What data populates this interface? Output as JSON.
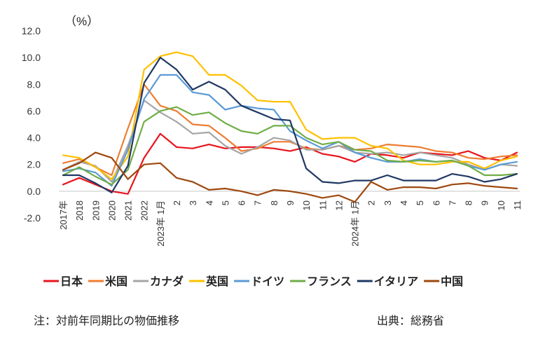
{
  "chart_data": {
    "type": "line",
    "title": "",
    "unit_label": "（%）",
    "xlabel": "",
    "ylabel": "",
    "ylim": [
      -2,
      12
    ],
    "yticks": [
      "12.0",
      "10.0",
      "8.0",
      "6.0",
      "4.0",
      "2.0",
      "0.0",
      "-2.0"
    ],
    "ytick_values": [
      12,
      10,
      8,
      6,
      4,
      2,
      0,
      -2
    ],
    "grid": false,
    "legend_position": "bottom",
    "categories": [
      "2017年",
      "2018",
      "2019",
      "2020",
      "2021",
      "2022",
      "2023年 1月",
      "2",
      "3",
      "4",
      "5",
      "6",
      "7",
      "8",
      "9",
      "10",
      "11",
      "12",
      "2024年 1月",
      "2",
      "3",
      "4",
      "5",
      "6",
      "7",
      "8",
      "9",
      "10",
      "11"
    ],
    "series": [
      {
        "name": "日本",
        "color": "#e8141c",
        "values": [
          0.5,
          1.0,
          0.5,
          0.0,
          -0.2,
          2.5,
          4.3,
          3.3,
          3.2,
          3.5,
          3.2,
          3.3,
          3.3,
          3.2,
          3.0,
          3.3,
          2.8,
          2.6,
          2.2,
          2.8,
          2.7,
          2.5,
          2.9,
          2.8,
          2.7,
          3.0,
          2.5,
          2.3,
          2.9
        ]
      },
      {
        "name": "米国",
        "color": "#ed7d31",
        "values": [
          2.1,
          2.4,
          1.8,
          1.2,
          4.7,
          8.0,
          6.4,
          6.0,
          5.0,
          4.9,
          4.0,
          3.0,
          3.2,
          3.7,
          3.7,
          3.2,
          3.1,
          3.4,
          3.1,
          3.2,
          3.5,
          3.4,
          3.3,
          3.0,
          2.9,
          2.5,
          2.4,
          2.6,
          2.7
        ]
      },
      {
        "name": "カナダ",
        "color": "#a5a5a5",
        "values": [
          1.6,
          2.2,
          1.9,
          0.7,
          3.4,
          6.8,
          5.9,
          5.2,
          4.3,
          4.4,
          3.4,
          2.8,
          3.3,
          4.0,
          3.8,
          3.1,
          3.1,
          3.4,
          2.9,
          2.8,
          2.9,
          2.7,
          2.9,
          2.7,
          2.5,
          2.0,
          1.6,
          2.0,
          1.9
        ]
      },
      {
        "name": "英国",
        "color": "#ffc000",
        "values": [
          2.7,
          2.5,
          1.8,
          0.9,
          2.6,
          9.1,
          10.1,
          10.4,
          10.1,
          8.7,
          8.7,
          7.9,
          6.8,
          6.7,
          6.7,
          4.6,
          3.9,
          4.0,
          4.0,
          3.4,
          3.2,
          2.3,
          2.0,
          2.0,
          2.2,
          2.2,
          1.7,
          2.3,
          2.6
        ]
      },
      {
        "name": "ドイツ",
        "color": "#5b9bd5",
        "values": [
          1.5,
          1.7,
          1.4,
          0.4,
          3.1,
          6.9,
          8.7,
          8.7,
          7.4,
          7.2,
          6.1,
          6.4,
          6.2,
          6.1,
          4.5,
          3.8,
          3.2,
          3.7,
          2.9,
          2.5,
          2.2,
          2.2,
          2.4,
          2.2,
          2.3,
          1.9,
          1.6,
          2.0,
          2.2
        ]
      },
      {
        "name": "フランス",
        "color": "#70ad47",
        "values": [
          1.2,
          1.8,
          1.1,
          0.5,
          1.6,
          5.2,
          6.0,
          6.3,
          5.7,
          5.9,
          5.1,
          4.5,
          4.3,
          4.9,
          4.9,
          4.0,
          3.5,
          3.7,
          3.1,
          3.0,
          2.3,
          2.2,
          2.3,
          2.2,
          2.3,
          1.9,
          1.2,
          1.2,
          1.3
        ]
      },
      {
        "name": "イタリア",
        "color": "#203864",
        "values": [
          1.2,
          1.2,
          0.6,
          -0.1,
          1.9,
          8.1,
          10.0,
          9.1,
          7.6,
          8.2,
          7.6,
          6.4,
          5.9,
          5.4,
          5.3,
          1.7,
          0.7,
          0.6,
          0.8,
          0.8,
          1.2,
          0.8,
          0.8,
          0.8,
          1.3,
          1.1,
          0.7,
          0.9,
          1.3
        ]
      },
      {
        "name": "中国",
        "color": "#9e480e",
        "values": [
          1.6,
          2.1,
          2.9,
          2.5,
          0.9,
          2.0,
          2.1,
          1.0,
          0.7,
          0.1,
          0.2,
          0.0,
          -0.3,
          0.1,
          0.0,
          -0.2,
          -0.5,
          -0.3,
          -0.8,
          0.7,
          0.1,
          0.3,
          0.3,
          0.2,
          0.5,
          0.6,
          0.4,
          0.3,
          0.2
        ]
      }
    ]
  },
  "notes": {
    "left": "注：対前年同期比の物価推移",
    "right": "出典：総務省"
  }
}
